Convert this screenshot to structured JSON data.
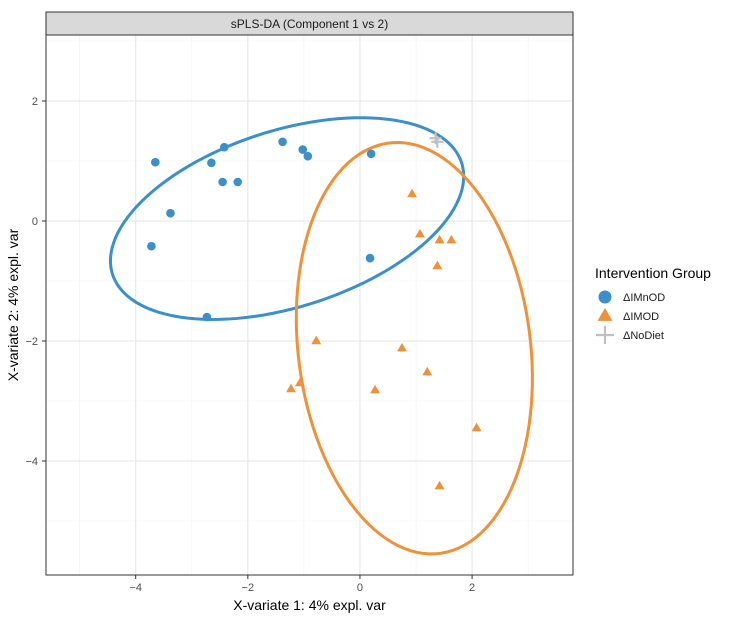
{
  "chart_data": {
    "type": "scatter",
    "title": "sPLS-DA (Component 1 vs 2)",
    "xlabel": "X-variate 1: 4% expl. var",
    "ylabel": "X-variate 2: 4% expl. var",
    "xlim": [
      -5.6,
      3.8
    ],
    "ylim": [
      -5.9,
      3.1
    ],
    "xticks": [
      -4,
      -2,
      0,
      2
    ],
    "yticks": [
      -4,
      -2,
      0,
      2
    ],
    "xtick_labels": [
      "−4",
      "−2",
      "0",
      "2"
    ],
    "ytick_labels": [
      "−4",
      "−2",
      "0",
      "2"
    ],
    "legend": {
      "title": "Intervention Group",
      "position": "right"
    },
    "series": [
      {
        "name": "ΔIMnOD",
        "marker": "circle",
        "color": "#3a8fcc",
        "points": [
          [
            -3.65,
            0.98
          ],
          [
            -3.38,
            0.13
          ],
          [
            -3.72,
            -0.42
          ],
          [
            -2.65,
            0.97
          ],
          [
            -2.42,
            1.23
          ],
          [
            -2.45,
            0.65
          ],
          [
            -2.18,
            0.65
          ],
          [
            -1.38,
            1.32
          ],
          [
            -1.02,
            1.19
          ],
          [
            -0.93,
            1.08
          ],
          [
            0.2,
            1.12
          ],
          [
            0.18,
            -0.62
          ],
          [
            -2.73,
            -1.6
          ]
        ],
        "ellipse": {
          "center": [
            -1.3,
            0.04
          ],
          "rx": 3.25,
          "ry": 1.48,
          "angle_deg": 16
        }
      },
      {
        "name": "ΔIMOD",
        "marker": "triangle",
        "color": "#f0913a",
        "points": [
          [
            0.93,
            0.45
          ],
          [
            1.07,
            -0.22
          ],
          [
            1.42,
            -0.32
          ],
          [
            1.63,
            -0.32
          ],
          [
            1.38,
            -0.75
          ],
          [
            0.75,
            -2.12
          ],
          [
            1.2,
            -2.52
          ],
          [
            0.27,
            -2.82
          ],
          [
            -1.23,
            -2.8
          ],
          [
            -1.07,
            -2.7
          ],
          [
            -0.78,
            -2.0
          ],
          [
            2.08,
            -3.45
          ],
          [
            1.42,
            -4.42
          ]
        ],
        "ellipse": {
          "center": [
            0.97,
            -2.12
          ],
          "rx": 2.07,
          "ry": 3.45,
          "angle_deg": 8
        }
      },
      {
        "name": "ΔNoDiet",
        "marker": "cross",
        "color": "#c0c0c0",
        "points": [
          [
            1.35,
            1.38
          ],
          [
            1.38,
            1.32
          ]
        ]
      }
    ]
  }
}
